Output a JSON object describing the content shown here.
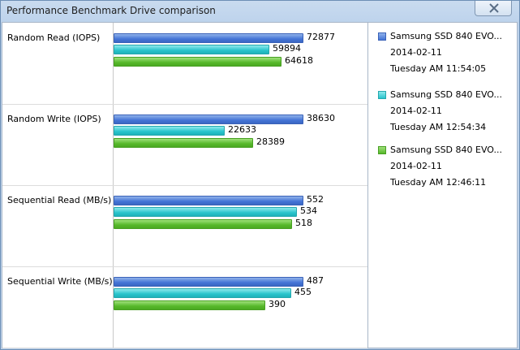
{
  "window": {
    "title": "Performance Benchmark Drive comparison"
  },
  "colors": {
    "drive_1": "#4474d6",
    "drive_2": "#28c4cc",
    "drive_3": "#56b82a"
  },
  "legend": [
    {
      "name": "Samsung SSD 840 EVO...",
      "date": "2014-02-11",
      "time": "Tuesday AM 11:54:05",
      "color": "blue"
    },
    {
      "name": "Samsung SSD 840 EVO...",
      "date": "2014-02-11",
      "time": "Tuesday AM 12:54:34",
      "color": "cyan"
    },
    {
      "name": "Samsung SSD 840 EVO...",
      "date": "2014-02-11",
      "time": "Tuesday AM 12:46:11",
      "color": "green"
    }
  ],
  "chart_data": {
    "type": "bar",
    "orientation": "horizontal",
    "categories": [
      "Random Read (IOPS)",
      "Random Write (IOPS)",
      "Sequential Read (MB/s)",
      "Sequential Write (MB/s)"
    ],
    "series": [
      {
        "values": [
          72877,
          38630,
          552,
          487
        ]
      },
      {
        "values": [
          59894,
          22633,
          534,
          455
        ]
      },
      {
        "values": [
          64618,
          28389,
          518,
          390
        ]
      }
    ],
    "labels": [
      [
        "72877",
        "59894",
        "64618"
      ],
      [
        "38630",
        "22633",
        "28389"
      ],
      [
        "552",
        "534",
        "518"
      ],
      [
        "487",
        "455",
        "390"
      ]
    ]
  }
}
